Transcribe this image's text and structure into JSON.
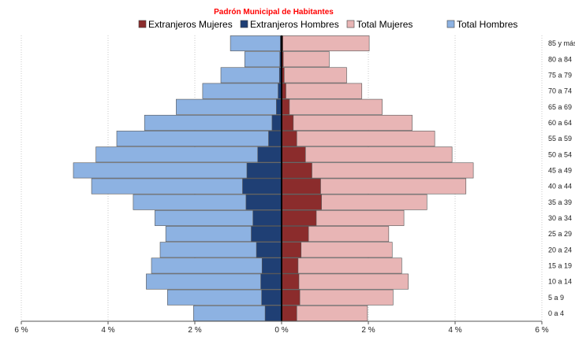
{
  "chart_data": {
    "type": "bar",
    "orientation": "horizontal",
    "style": "population-pyramid",
    "title": "Padrón Municipal  de Habitantes",
    "categories": [
      "0 a 4",
      "5 a 9",
      "10 a 14",
      "15 a 19",
      "20 a 24",
      "25 a 29",
      "30 a 34",
      "35 a 39",
      "40 a 44",
      "45 a 49",
      "50 a 54",
      "55 a 59",
      "60 a 64",
      "65 a 69",
      "70 a 74",
      "75 a 79",
      "80 a 84",
      "85 y más"
    ],
    "xlim": [
      -6,
      6
    ],
    "x_tick_values": [
      -6,
      -4,
      -2,
      0,
      2,
      4,
      6
    ],
    "x_tick_labels": [
      "6 %",
      "4 %",
      "2 %",
      "0 %",
      "2 %",
      "4 %",
      "6 %"
    ],
    "grid": "vertical",
    "legend_position": "top",
    "series": [
      {
        "name": "Extranjeros Mujeres",
        "side": "right",
        "color": "#8b2c2c",
        "values": [
          0.35,
          0.42,
          0.4,
          0.38,
          0.45,
          0.62,
          0.8,
          0.92,
          0.9,
          0.7,
          0.55,
          0.35,
          0.27,
          0.18,
          0.1,
          0.06,
          0.04,
          0.03
        ]
      },
      {
        "name": "Extranjeros Hombres",
        "side": "left",
        "color": "#1f3f74",
        "values": [
          0.38,
          0.46,
          0.48,
          0.45,
          0.58,
          0.7,
          0.66,
          0.82,
          0.9,
          0.8,
          0.55,
          0.3,
          0.22,
          0.12,
          0.08,
          0.05,
          0.04,
          0.03
        ]
      },
      {
        "name": "Total Mujeres",
        "side": "right",
        "color": "#e8b5b5",
        "values": [
          1.98,
          2.57,
          2.92,
          2.77,
          2.55,
          2.47,
          2.82,
          3.35,
          4.25,
          4.42,
          3.93,
          3.53,
          3.01,
          2.32,
          1.85,
          1.5,
          1.1,
          2.02
        ]
      },
      {
        "name": "Total Hombres",
        "side": "left",
        "color": "#8db2e2",
        "values": [
          2.03,
          2.63,
          3.12,
          3.0,
          2.8,
          2.67,
          2.92,
          3.42,
          4.38,
          4.8,
          4.28,
          3.8,
          3.16,
          2.43,
          1.82,
          1.4,
          0.85,
          1.18
        ]
      }
    ]
  }
}
